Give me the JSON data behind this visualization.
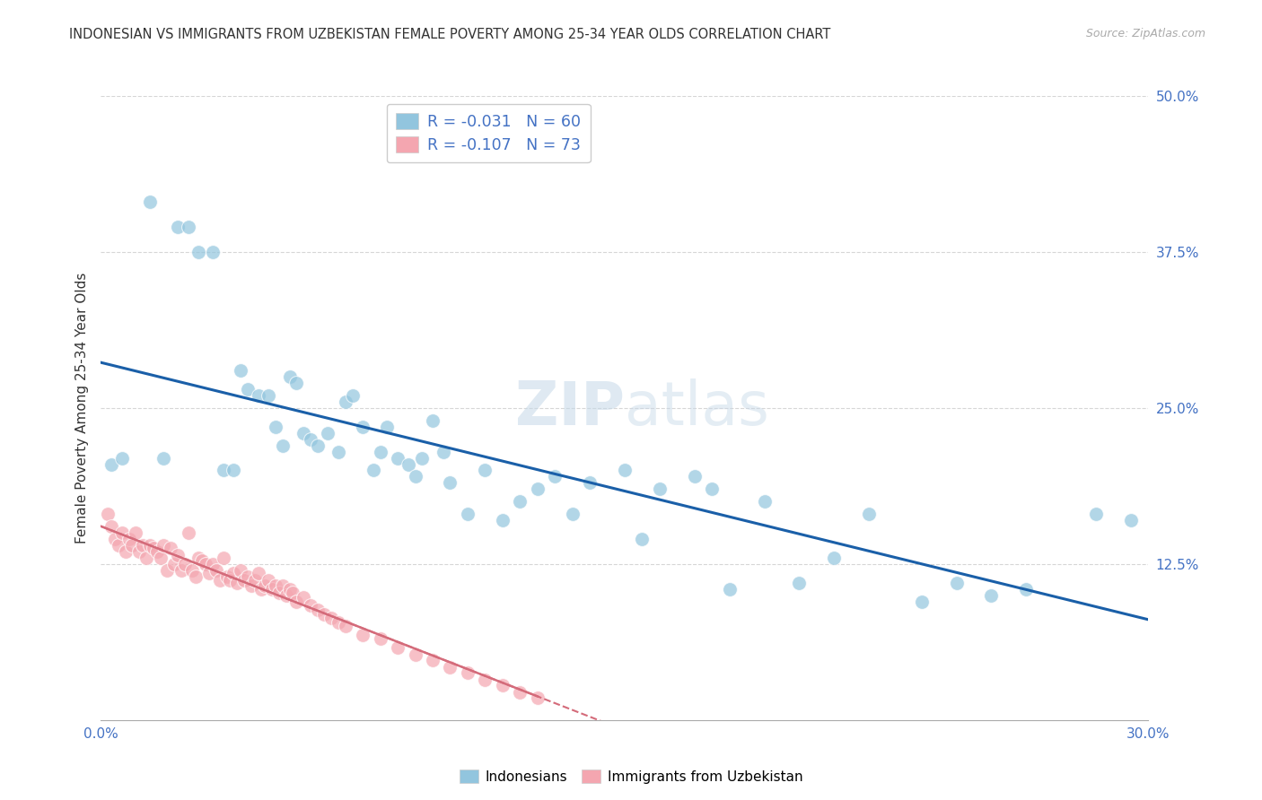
{
  "title": "INDONESIAN VS IMMIGRANTS FROM UZBEKISTAN FEMALE POVERTY AMONG 25-34 YEAR OLDS CORRELATION CHART",
  "source": "Source: ZipAtlas.com",
  "ylabel": "Female Poverty Among 25-34 Year Olds",
  "xlim": [
    0.0,
    0.3
  ],
  "ylim": [
    0.0,
    0.5
  ],
  "xticks": [
    0.0,
    0.05,
    0.1,
    0.15,
    0.2,
    0.25,
    0.3
  ],
  "xticklabels": [
    "0.0%",
    "",
    "",
    "",
    "",
    "",
    "30.0%"
  ],
  "yticks_right": [
    0.0,
    0.125,
    0.25,
    0.375,
    0.5
  ],
  "yticklabels_right": [
    "",
    "12.5%",
    "25.0%",
    "37.5%",
    "50.0%"
  ],
  "indonesians_R": -0.031,
  "indonesians_N": 60,
  "uzbekistan_R": -0.107,
  "uzbekistan_N": 73,
  "blue_color": "#92c5de",
  "pink_color": "#f4a6b0",
  "trend_blue": "#1a5fa8",
  "trend_pink": "#d46b7a",
  "indonesians_x": [
    0.003,
    0.006,
    0.014,
    0.018,
    0.022,
    0.025,
    0.028,
    0.032,
    0.035,
    0.038,
    0.04,
    0.042,
    0.045,
    0.048,
    0.05,
    0.052,
    0.054,
    0.056,
    0.058,
    0.06,
    0.062,
    0.065,
    0.068,
    0.07,
    0.072,
    0.075,
    0.078,
    0.08,
    0.082,
    0.085,
    0.088,
    0.09,
    0.092,
    0.095,
    0.098,
    0.1,
    0.105,
    0.11,
    0.115,
    0.12,
    0.125,
    0.13,
    0.135,
    0.14,
    0.15,
    0.155,
    0.16,
    0.17,
    0.175,
    0.18,
    0.19,
    0.2,
    0.21,
    0.22,
    0.235,
    0.245,
    0.255,
    0.265,
    0.285,
    0.295
  ],
  "indonesians_y": [
    0.205,
    0.21,
    0.415,
    0.21,
    0.395,
    0.395,
    0.375,
    0.375,
    0.2,
    0.2,
    0.28,
    0.265,
    0.26,
    0.26,
    0.235,
    0.22,
    0.275,
    0.27,
    0.23,
    0.225,
    0.22,
    0.23,
    0.215,
    0.255,
    0.26,
    0.235,
    0.2,
    0.215,
    0.235,
    0.21,
    0.205,
    0.195,
    0.21,
    0.24,
    0.215,
    0.19,
    0.165,
    0.2,
    0.16,
    0.175,
    0.185,
    0.195,
    0.165,
    0.19,
    0.2,
    0.145,
    0.185,
    0.195,
    0.185,
    0.105,
    0.175,
    0.11,
    0.13,
    0.165,
    0.095,
    0.11,
    0.1,
    0.105,
    0.165,
    0.16
  ],
  "uzbekistan_x": [
    0.002,
    0.003,
    0.004,
    0.005,
    0.006,
    0.007,
    0.008,
    0.009,
    0.01,
    0.011,
    0.012,
    0.013,
    0.014,
    0.015,
    0.016,
    0.017,
    0.018,
    0.019,
    0.02,
    0.021,
    0.022,
    0.023,
    0.024,
    0.025,
    0.026,
    0.027,
    0.028,
    0.029,
    0.03,
    0.031,
    0.032,
    0.033,
    0.034,
    0.035,
    0.036,
    0.037,
    0.038,
    0.039,
    0.04,
    0.041,
    0.042,
    0.043,
    0.044,
    0.045,
    0.046,
    0.047,
    0.048,
    0.049,
    0.05,
    0.051,
    0.052,
    0.053,
    0.054,
    0.055,
    0.056,
    0.058,
    0.06,
    0.062,
    0.064,
    0.066,
    0.068,
    0.07,
    0.075,
    0.08,
    0.085,
    0.09,
    0.095,
    0.1,
    0.105,
    0.11,
    0.115,
    0.12,
    0.125
  ],
  "uzbekistan_y": [
    0.165,
    0.155,
    0.145,
    0.14,
    0.15,
    0.135,
    0.145,
    0.14,
    0.15,
    0.135,
    0.14,
    0.13,
    0.14,
    0.138,
    0.135,
    0.13,
    0.14,
    0.12,
    0.138,
    0.125,
    0.132,
    0.12,
    0.125,
    0.15,
    0.12,
    0.115,
    0.13,
    0.128,
    0.125,
    0.118,
    0.125,
    0.12,
    0.112,
    0.13,
    0.115,
    0.112,
    0.118,
    0.11,
    0.12,
    0.112,
    0.115,
    0.108,
    0.112,
    0.118,
    0.105,
    0.108,
    0.112,
    0.105,
    0.108,
    0.102,
    0.108,
    0.1,
    0.105,
    0.102,
    0.095,
    0.098,
    0.092,
    0.088,
    0.085,
    0.082,
    0.078,
    0.075,
    0.068,
    0.065,
    0.058,
    0.052,
    0.048,
    0.042,
    0.038,
    0.032,
    0.028,
    0.022,
    0.018
  ],
  "watermark_zip": "ZIP",
  "watermark_atlas": "atlas",
  "background_color": "#ffffff",
  "grid_color": "#cccccc"
}
